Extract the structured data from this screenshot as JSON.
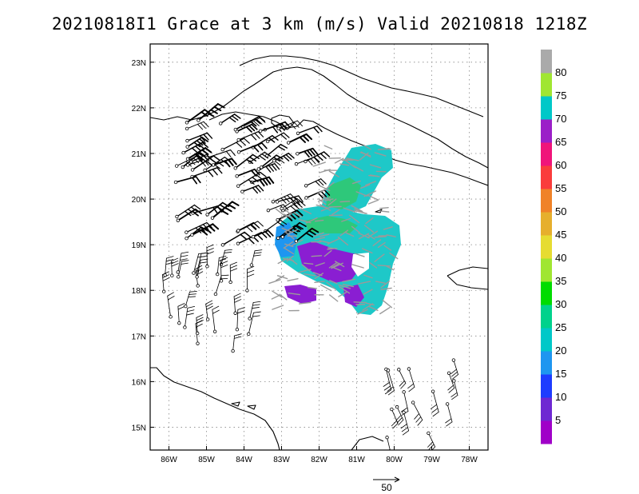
{
  "title": "20210818I1 Grace at 3 km (m/s) Valid 20210818 1218Z",
  "map": {
    "lon_range": [
      -86.5,
      -77.5
    ],
    "lat_range": [
      14.5,
      23.4
    ],
    "x_ticks": [
      {
        "lon": -86,
        "label": "86W"
      },
      {
        "lon": -85,
        "label": "85W"
      },
      {
        "lon": -84,
        "label": "84W"
      },
      {
        "lon": -83,
        "label": "83W"
      },
      {
        "lon": -82,
        "label": "82W"
      },
      {
        "lon": -81,
        "label": "81W"
      },
      {
        "lon": -80,
        "label": "80W"
      },
      {
        "lon": -79,
        "label": "79W"
      },
      {
        "lon": -78,
        "label": "78W"
      }
    ],
    "y_ticks": [
      {
        "lat": 23,
        "label": "23N"
      },
      {
        "lat": 22,
        "label": "22N"
      },
      {
        "lat": 21,
        "label": "21N"
      },
      {
        "lat": 20,
        "label": "20N"
      },
      {
        "lat": 19,
        "label": "19N"
      },
      {
        "lat": 18,
        "label": "18N"
      },
      {
        "lat": 17,
        "label": "17N"
      },
      {
        "lat": 16,
        "label": "16N"
      },
      {
        "lat": 15,
        "label": "15N"
      }
    ],
    "grid": true
  },
  "colorbar": {
    "labels": [
      "5",
      "10",
      "15",
      "20",
      "25",
      "30",
      "35",
      "40",
      "45",
      "50",
      "55",
      "60",
      "65",
      "70",
      "75",
      "80"
    ],
    "colors": [
      "#a000c8",
      "#6e28d2",
      "#1e3cff",
      "#1e96f0",
      "#00c8c8",
      "#00d28c",
      "#00dc00",
      "#a0e632",
      "#e6dc32",
      "#e6af2d",
      "#f08228",
      "#fa3c3c",
      "#f0147a",
      "#9b1fc8",
      "#00c8c8",
      "#a0e632",
      "#aaaaaa"
    ]
  },
  "reference_vector": {
    "label": "50"
  }
}
